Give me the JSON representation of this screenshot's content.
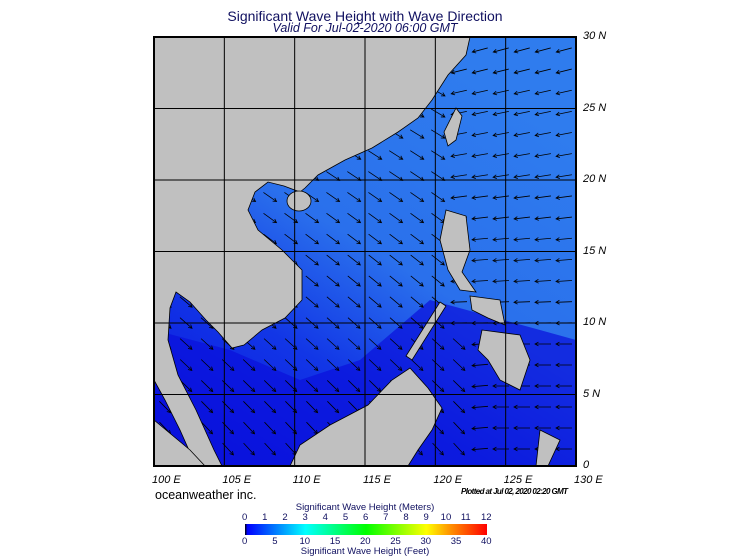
{
  "header": {
    "title": "Significant Wave Height with Wave Direction",
    "subtitle": "Valid For Jul-02-2020 06:00 GMT"
  },
  "map": {
    "lat_labels": [
      "30 N",
      "25 N",
      "20 N",
      "15 N",
      "10 N",
      "5 N",
      "0"
    ],
    "lon_labels": [
      "100 E",
      "105 E",
      "110 E",
      "115 E",
      "120 E",
      "125 E",
      "130 E"
    ],
    "extent": {
      "lon": [
        100,
        130
      ],
      "lat": [
        0,
        30
      ]
    },
    "colors": {
      "land": "#c0c0c0",
      "ocean_low": "#0a14e6",
      "ocean_mid": "#1e5ae8",
      "ocean_high": "#3c8ef0",
      "arrow": "#000000"
    }
  },
  "footer": {
    "brand": "oceanweather inc.",
    "plotted": "Plotted at Jul 02, 2020 02:20 GMT"
  },
  "colorbar": {
    "title_top": "Significant Wave Height (Meters)",
    "meters": [
      "0",
      "1",
      "2",
      "3",
      "4",
      "5",
      "6",
      "7",
      "8",
      "9",
      "10",
      "11",
      "12"
    ],
    "feet": [
      "0",
      "5",
      "10",
      "15",
      "20",
      "25",
      "30",
      "35",
      "40"
    ],
    "title_bottom": "Significant Wave Height (Feet)",
    "colors": [
      "#000000",
      "#0000ff",
      "#0080ff",
      "#00ffff",
      "#00ff80",
      "#00ff00",
      "#80ff00",
      "#ffff00",
      "#ff8000",
      "#ff0000"
    ]
  }
}
